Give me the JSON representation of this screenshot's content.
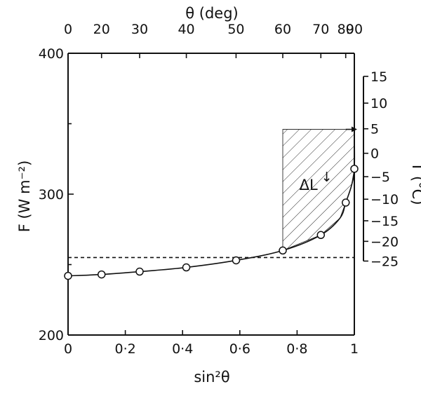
{
  "chart_data": {
    "type": "scatter",
    "xlabel": "sin²θ",
    "ylabel": "F (W m⁻²)",
    "top_axis_label": "θ (deg)",
    "right_axis_label": "T (°C)",
    "xlim": [
      0,
      1
    ],
    "ylim": [
      200,
      400
    ],
    "x_ticks": [
      "0",
      "0·2",
      "0·4",
      "0·6",
      "0·8",
      "1"
    ],
    "x_tick_values": [
      0,
      0.2,
      0.4,
      0.6,
      0.8,
      1.0
    ],
    "y_ticks": [
      "200",
      "300",
      "400"
    ],
    "y_tick_values": [
      200,
      300,
      400
    ],
    "top_ticks": [
      "0",
      "20",
      "30",
      "40",
      "50",
      "60",
      "70",
      "80",
      "90"
    ],
    "top_tick_values_deg": [
      0,
      20,
      30,
      40,
      50,
      60,
      70,
      80,
      90
    ],
    "right_ticks": [
      "15",
      "10",
      "5",
      "0",
      "−5",
      "−10",
      "−15",
      "−20",
      "−25"
    ],
    "right_tick_values": [
      15,
      10,
      5,
      0,
      -5,
      -10,
      -15,
      -20,
      -25
    ],
    "right_tick_F": [
      383.6,
      364.6,
      346.4,
      329.0,
      312.4,
      296.4,
      281.1,
      266.5,
      252.5
    ],
    "points": [
      {
        "x": 0.0,
        "y": 242
      },
      {
        "x": 0.117,
        "y": 243
      },
      {
        "x": 0.25,
        "y": 245
      },
      {
        "x": 0.413,
        "y": 248
      },
      {
        "x": 0.587,
        "y": 253
      },
      {
        "x": 0.75,
        "y": 260
      },
      {
        "x": 0.883,
        "y": 271
      },
      {
        "x": 0.97,
        "y": 294
      },
      {
        "x": 1.0,
        "y": 318
      }
    ],
    "curve": [
      {
        "x": 0.0,
        "y": 242
      },
      {
        "x": 0.117,
        "y": 243
      },
      {
        "x": 0.25,
        "y": 245
      },
      {
        "x": 0.413,
        "y": 248
      },
      {
        "x": 0.587,
        "y": 253
      },
      {
        "x": 0.75,
        "y": 260
      },
      {
        "x": 0.883,
        "y": 271
      },
      {
        "x": 0.95,
        "y": 283
      },
      {
        "x": 0.97,
        "y": 294
      },
      {
        "x": 0.99,
        "y": 306
      },
      {
        "x": 1.0,
        "y": 318
      },
      {
        "x": 1.0,
        "y": 342
      }
    ],
    "reference_line_F": 255,
    "shaded_region": {
      "label_main": "ΔL",
      "label_sup": "↓",
      "x_start": 0.75,
      "x_end": 1.0,
      "top_F": 346
    },
    "grid": false,
    "legend": "none"
  }
}
